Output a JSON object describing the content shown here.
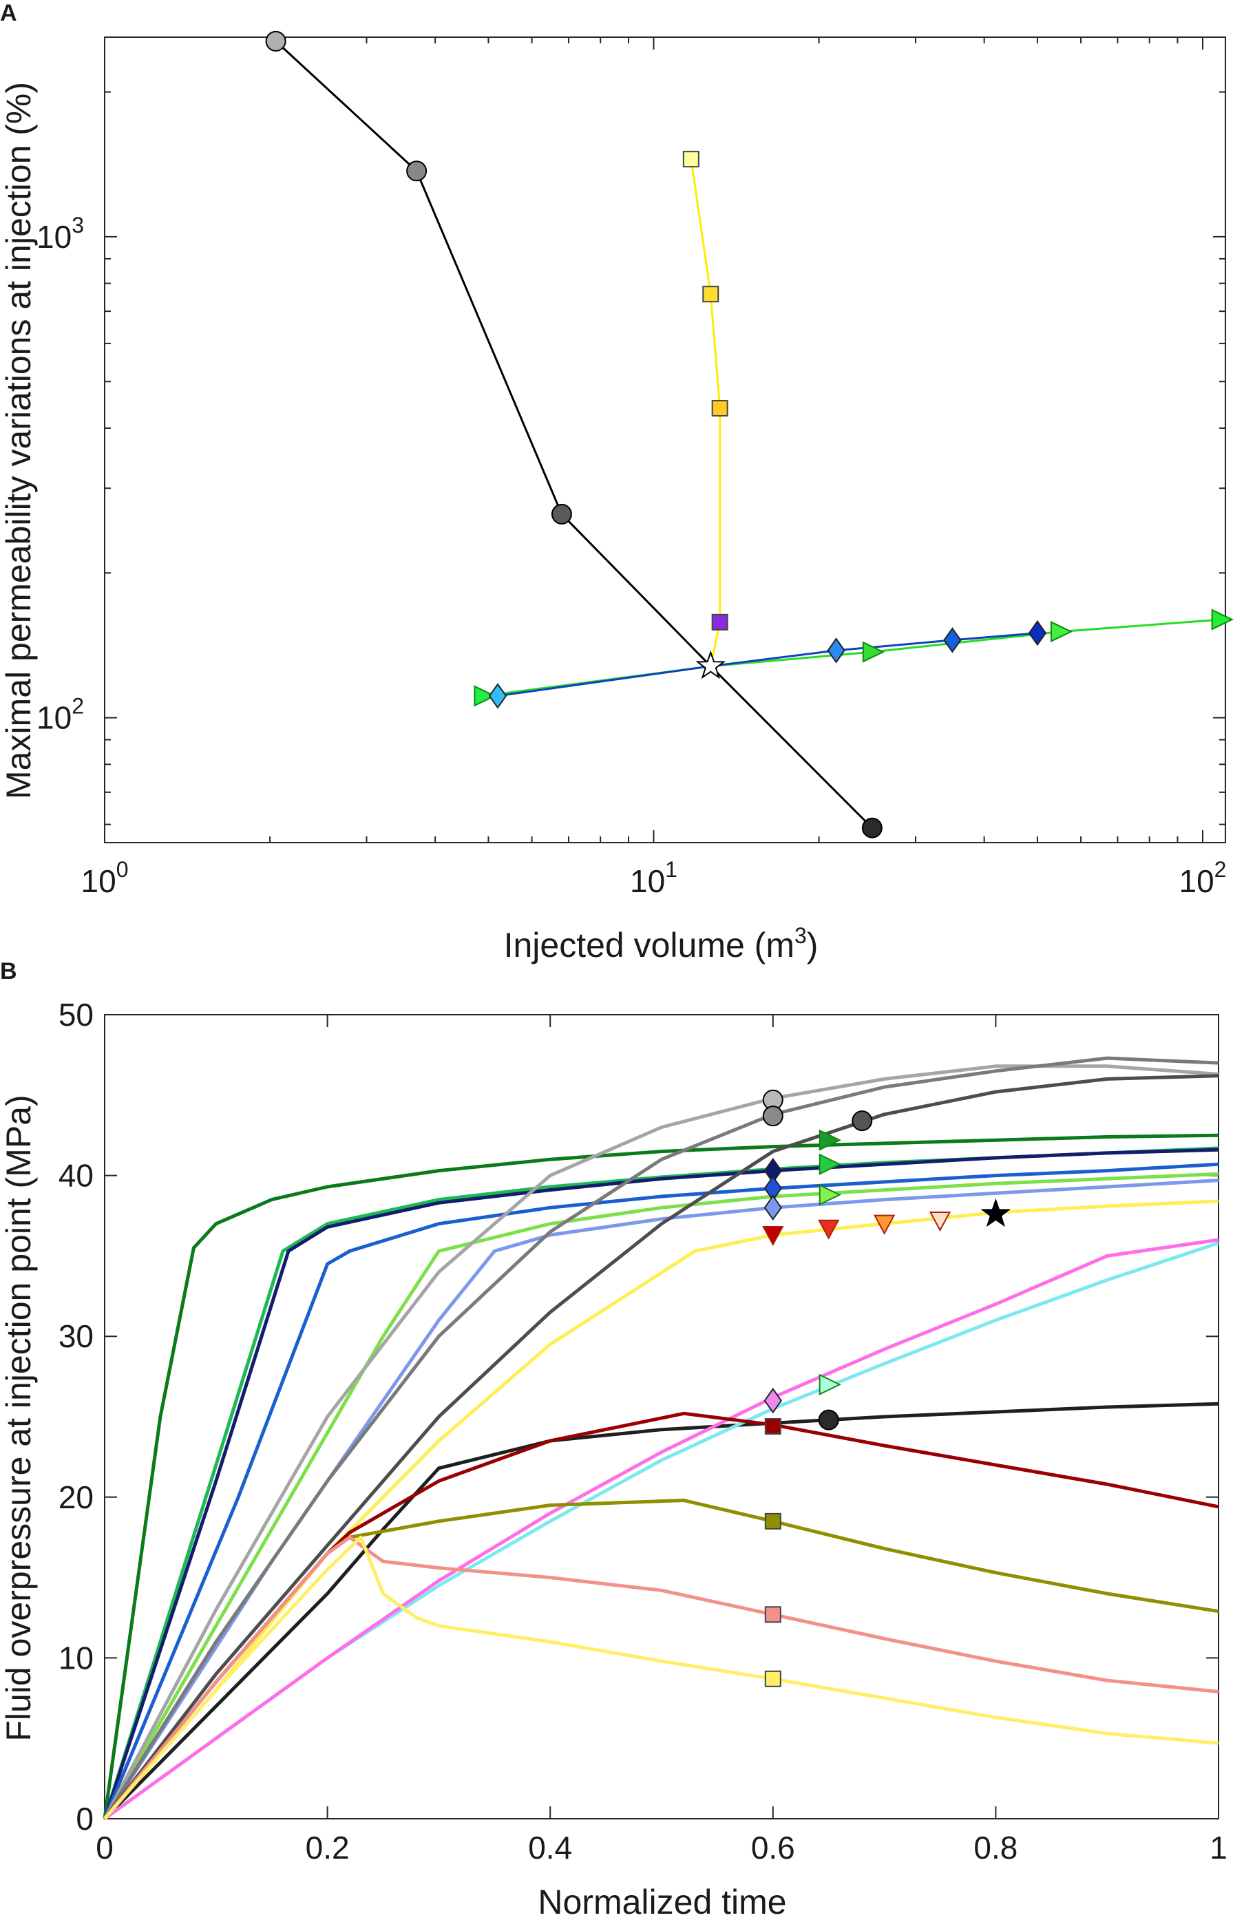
{
  "chart_data": [
    {
      "panel_label": "A",
      "type": "line",
      "xscale": "log",
      "yscale": "log",
      "xlabel": "Injected volume (m",
      "xlabel_sup": "3",
      "xlabel_end": ")",
      "ylabel": "Maximal permeability variations at injection (%)",
      "xlim": [
        1,
        110
      ],
      "ylim": [
        55,
        2600
      ],
      "xticks": [
        {
          "value": 1,
          "base": "10",
          "exp": "0"
        },
        {
          "value": 10,
          "base": "10",
          "exp": "1"
        },
        {
          "value": 100,
          "base": "10",
          "exp": "2"
        }
      ],
      "yticks": [
        {
          "value": 100,
          "base": "10",
          "exp": "2"
        },
        {
          "value": 1000,
          "base": "10",
          "exp": "3"
        }
      ],
      "series": [
        {
          "name": "black-circles",
          "color": "#000000",
          "x": [
            2.05,
            3.7,
            6.8,
            12.7,
            25.0
          ],
          "y": [
            2550,
            1370,
            265,
            128,
            59
          ],
          "markers": [
            {
              "x": 2.05,
              "y": 2550,
              "shape": "circle",
              "fill": "#b0b0b0"
            },
            {
              "x": 3.7,
              "y": 1370,
              "shape": "circle",
              "fill": "#888888"
            },
            {
              "x": 6.8,
              "y": 265,
              "shape": "circle",
              "fill": "#5a5a5a"
            },
            {
              "x": 25.0,
              "y": 59,
              "shape": "circle",
              "fill": "#2a2a2a"
            }
          ]
        },
        {
          "name": "yellow-squares",
          "color": "#ffee00",
          "x": [
            11.7,
            12.7,
            13.2,
            13.2,
            12.7
          ],
          "y": [
            1450,
            760,
            440,
            158,
            128
          ],
          "markers": [
            {
              "x": 11.7,
              "y": 1450,
              "shape": "square",
              "fill": "#ffff99"
            },
            {
              "x": 12.7,
              "y": 760,
              "shape": "square",
              "fill": "#ffdd33"
            },
            {
              "x": 13.2,
              "y": 440,
              "shape": "square",
              "fill": "#ffcc22"
            },
            {
              "x": 13.2,
              "y": 158,
              "shape": "square",
              "fill": "#8a2be2"
            }
          ]
        },
        {
          "name": "green-triangles",
          "color": "#22dd22",
          "x": [
            4.9,
            12.7,
            25.0,
            55.0,
            108.0
          ],
          "y": [
            111,
            128,
            137,
            151,
            160
          ],
          "markers": [
            {
              "x": 4.9,
              "y": 111,
              "shape": "tri-right",
              "fill": "#22ee44"
            },
            {
              "x": 25.0,
              "y": 137,
              "shape": "tri-right",
              "fill": "#33dd33"
            },
            {
              "x": 55.0,
              "y": 151,
              "shape": "tri-right",
              "fill": "#44ee44"
            },
            {
              "x": 108.0,
              "y": 160,
              "shape": "tri-right",
              "fill": "#22ee33"
            }
          ]
        },
        {
          "name": "blue-diamonds",
          "color": "#1040c0",
          "x": [
            5.2,
            12.7,
            21.5,
            35.0,
            50.0
          ],
          "y": [
            111,
            128,
            138,
            145,
            150
          ],
          "markers": [
            {
              "x": 5.2,
              "y": 111,
              "shape": "diamond",
              "fill": "#33bbff"
            },
            {
              "x": 21.5,
              "y": 138,
              "shape": "diamond",
              "fill": "#2a8af0"
            },
            {
              "x": 35.0,
              "y": 145,
              "shape": "diamond",
              "fill": "#1560e0"
            },
            {
              "x": 50.0,
              "y": 150,
              "shape": "diamond",
              "fill": "#0a2ec0"
            }
          ]
        }
      ],
      "reference_point": {
        "x": 12.7,
        "y": 128,
        "shape": "star",
        "fill": "#ffffff",
        "stroke": "#000000"
      }
    },
    {
      "panel_label": "B",
      "type": "line",
      "xscale": "linear",
      "yscale": "linear",
      "xlabel": "Normalized time",
      "ylabel": "Fluid overpressure at injection point (MPa)",
      "xlim": [
        0,
        1
      ],
      "ylim": [
        0,
        50
      ],
      "xticks": [
        0,
        0.2,
        0.4,
        0.6,
        0.8,
        1
      ],
      "xtick_labels": [
        "0",
        "0.2",
        "0.4",
        "0.6",
        "0.8",
        "1"
      ],
      "yticks": [
        0,
        10,
        20,
        30,
        40,
        50
      ],
      "ytick_labels": [
        "0",
        "10",
        "20",
        "30",
        "40",
        "50"
      ],
      "series": [
        {
          "name": "dark-green",
          "color": "#0a7a1a",
          "x": [
            0,
            0.05,
            0.08,
            0.1,
            0.15,
            0.2,
            0.3,
            0.4,
            0.5,
            0.6,
            0.7,
            0.8,
            0.9,
            1.0
          ],
          "y": [
            0,
            25,
            35.5,
            37,
            38.5,
            39.3,
            40.3,
            41,
            41.5,
            41.8,
            42,
            42.2,
            42.4,
            42.5
          ],
          "markers": [
            {
              "x": 0.65,
              "y": 42.2,
              "shape": "tri-right",
              "fill": "#1a9a2a"
            }
          ]
        },
        {
          "name": "medium-green",
          "color": "#1db954",
          "x": [
            0,
            0.1,
            0.16,
            0.2,
            0.3,
            0.4,
            0.5,
            0.6,
            0.7,
            0.8,
            0.9,
            1.0
          ],
          "y": [
            0,
            22,
            35.3,
            37,
            38.5,
            39.3,
            39.9,
            40.4,
            40.8,
            41.1,
            41.4,
            41.7
          ],
          "markers": [
            {
              "x": 0.65,
              "y": 40.7,
              "shape": "tri-right",
              "fill": "#22cc44"
            }
          ]
        },
        {
          "name": "navy",
          "color": "#141c6e",
          "x": [
            0,
            0.1,
            0.165,
            0.2,
            0.3,
            0.4,
            0.5,
            0.6,
            0.7,
            0.8,
            0.9,
            1.0
          ],
          "y": [
            0,
            21,
            35.3,
            36.8,
            38.3,
            39.1,
            39.8,
            40.3,
            40.7,
            41.1,
            41.4,
            41.6
          ],
          "markers": [
            {
              "x": 0.6,
              "y": 40.3,
              "shape": "diamond",
              "fill": "#101a70"
            }
          ]
        },
        {
          "name": "blue",
          "color": "#1a5fd0",
          "x": [
            0,
            0.12,
            0.2,
            0.22,
            0.3,
            0.4,
            0.5,
            0.6,
            0.7,
            0.8,
            0.9,
            1.0
          ],
          "y": [
            0,
            20,
            34.5,
            35.3,
            37,
            38,
            38.7,
            39.2,
            39.6,
            40,
            40.3,
            40.7
          ],
          "markers": [
            {
              "x": 0.6,
              "y": 39.2,
              "shape": "diamond",
              "fill": "#1f50d8"
            }
          ]
        },
        {
          "name": "light-green",
          "color": "#7be04a",
          "x": [
            0,
            0.15,
            0.25,
            0.3,
            0.4,
            0.5,
            0.6,
            0.7,
            0.8,
            0.9,
            1.0
          ],
          "y": [
            0,
            18,
            30,
            35.3,
            37,
            38,
            38.7,
            39.1,
            39.5,
            39.8,
            40.1
          ],
          "markers": [
            {
              "x": 0.65,
              "y": 38.8,
              "shape": "tri-right",
              "fill": "#88ee55"
            }
          ]
        },
        {
          "name": "light-blue",
          "color": "#7c98ea",
          "x": [
            0,
            0.15,
            0.3,
            0.35,
            0.4,
            0.5,
            0.6,
            0.7,
            0.8,
            0.9,
            1.0
          ],
          "y": [
            0,
            16,
            31,
            35.3,
            36.3,
            37.3,
            38,
            38.5,
            38.9,
            39.3,
            39.7
          ],
          "markers": [
            {
              "x": 0.6,
              "y": 38,
              "shape": "diamond",
              "fill": "#7c98ea"
            }
          ]
        },
        {
          "name": "light-gray",
          "color": "#a5a5a5",
          "x": [
            0,
            0.1,
            0.2,
            0.3,
            0.4,
            0.5,
            0.6,
            0.7,
            0.8,
            0.9,
            1.0
          ],
          "y": [
            0,
            13,
            25,
            34,
            40,
            43,
            44.8,
            46,
            46.8,
            46.8,
            46.3
          ],
          "markers": [
            {
              "x": 0.6,
              "y": 44.7,
              "shape": "circle",
              "fill": "#b8b8b8"
            }
          ]
        },
        {
          "name": "mid-gray",
          "color": "#7a7a7a",
          "x": [
            0,
            0.1,
            0.2,
            0.3,
            0.4,
            0.5,
            0.6,
            0.7,
            0.8,
            0.9,
            1.0
          ],
          "y": [
            0,
            11,
            21,
            30,
            36.5,
            41,
            43.8,
            45.5,
            46.5,
            47.3,
            47
          ],
          "markers": [
            {
              "x": 0.6,
              "y": 43.7,
              "shape": "circle",
              "fill": "#8a8a8a"
            }
          ]
        },
        {
          "name": "dark-gray",
          "color": "#4d4d4d",
          "x": [
            0,
            0.1,
            0.2,
            0.3,
            0.4,
            0.5,
            0.6,
            0.7,
            0.8,
            0.9,
            1.0
          ],
          "y": [
            0,
            9,
            17,
            25,
            31.5,
            37,
            41.5,
            43.8,
            45.2,
            46,
            46.2
          ],
          "markers": [
            {
              "x": 0.68,
              "y": 43.4,
              "shape": "circle",
              "fill": "#555555"
            }
          ]
        },
        {
          "name": "yellow-upper",
          "color": "#ffee55",
          "x": [
            0,
            0.1,
            0.2,
            0.3,
            0.4,
            0.53,
            0.6,
            0.7,
            0.8,
            0.9,
            1.0
          ],
          "y": [
            0,
            8,
            16.5,
            23.5,
            29.5,
            35.3,
            36.3,
            37,
            37.7,
            38.1,
            38.4
          ],
          "markers": [
            {
              "x": 0.6,
              "y": 36.3,
              "shape": "tri-down",
              "fill": "#c00000"
            },
            {
              "x": 0.65,
              "y": 36.7,
              "shape": "tri-down",
              "fill": "#e83020"
            },
            {
              "x": 0.7,
              "y": 37,
              "shape": "tri-down",
              "fill": "#ff9933"
            },
            {
              "x": 0.75,
              "y": 37.2,
              "shape": "tri-down",
              "fill": "#ffe0c8"
            },
            {
              "x": 0.8,
              "y": 37.6,
              "shape": "star",
              "fill": "#000000"
            }
          ]
        },
        {
          "name": "black",
          "color": "#1f1f1f",
          "x": [
            0,
            0.1,
            0.2,
            0.25,
            0.3,
            0.4,
            0.5,
            0.6,
            0.7,
            0.8,
            0.9,
            1.0
          ],
          "y": [
            0,
            7,
            14,
            18,
            21.8,
            23.5,
            24.2,
            24.6,
            25,
            25.3,
            25.6,
            25.8
          ],
          "markers": [
            {
              "x": 0.65,
              "y": 24.8,
              "shape": "circle",
              "fill": "#2a2a2a"
            }
          ]
        },
        {
          "name": "cyan",
          "color": "#7ee8f0",
          "x": [
            0,
            0.1,
            0.2,
            0.3,
            0.4,
            0.5,
            0.6,
            0.7,
            0.8,
            0.9,
            1.0
          ],
          "y": [
            0,
            5,
            10,
            14.5,
            18.5,
            22.3,
            25.5,
            28.3,
            31,
            33.5,
            35.8
          ],
          "markers": [
            {
              "x": 0.65,
              "y": 27,
              "shape": "tri-right",
              "fill": "#aaffdd"
            }
          ]
        },
        {
          "name": "magenta",
          "color": "#ff6ee8",
          "x": [
            0,
            0.1,
            0.2,
            0.3,
            0.4,
            0.5,
            0.6,
            0.7,
            0.8,
            0.9,
            1.0
          ],
          "y": [
            0,
            5,
            10,
            14.8,
            19,
            22.8,
            26.2,
            29.2,
            32,
            35,
            36
          ],
          "markers": [
            {
              "x": 0.6,
              "y": 26,
              "shape": "diamond",
              "fill": "#ee88ee"
            }
          ]
        },
        {
          "name": "dark-red",
          "color": "#990000",
          "x": [
            0,
            0.1,
            0.2,
            0.22,
            0.3,
            0.4,
            0.52,
            0.6,
            0.7,
            0.8,
            0.9,
            1.0
          ],
          "y": [
            0,
            8.5,
            16.5,
            17.8,
            21,
            23.5,
            25.2,
            24.5,
            23.2,
            22,
            20.8,
            19.4
          ],
          "markers": [
            {
              "x": 0.6,
              "y": 24.4,
              "shape": "square",
              "fill": "#990000"
            }
          ]
        },
        {
          "name": "olive",
          "color": "#8f8f00",
          "x": [
            0,
            0.1,
            0.2,
            0.22,
            0.3,
            0.4,
            0.52,
            0.6,
            0.7,
            0.8,
            0.9,
            1.0
          ],
          "y": [
            0,
            8.5,
            16.5,
            17.5,
            18.5,
            19.5,
            19.8,
            18.5,
            16.8,
            15.3,
            14,
            12.9
          ],
          "markers": [
            {
              "x": 0.6,
              "y": 18.5,
              "shape": "square",
              "fill": "#8f8f00"
            }
          ]
        },
        {
          "name": "salmon",
          "color": "#f4908a",
          "x": [
            0,
            0.1,
            0.2,
            0.22,
            0.25,
            0.3,
            0.4,
            0.5,
            0.6,
            0.7,
            0.8,
            0.9,
            1.0
          ],
          "y": [
            0,
            8.5,
            16.5,
            17.5,
            16,
            15.6,
            15,
            14.2,
            12.7,
            11.2,
            9.8,
            8.6,
            7.9
          ],
          "markers": [
            {
              "x": 0.6,
              "y": 12.7,
              "shape": "square",
              "fill": "#f4908a"
            }
          ]
        },
        {
          "name": "pale-yellow",
          "color": "#ffee66",
          "x": [
            0,
            0.1,
            0.2,
            0.23,
            0.25,
            0.28,
            0.3,
            0.4,
            0.5,
            0.6,
            0.7,
            0.8,
            0.9,
            1.0
          ],
          "y": [
            0,
            8,
            15.5,
            17.5,
            14,
            12.5,
            12,
            11,
            9.8,
            8.7,
            7.5,
            6.3,
            5.3,
            4.7
          ],
          "markers": [
            {
              "x": 0.6,
              "y": 8.7,
              "shape": "square",
              "fill": "#ffee66"
            }
          ]
        }
      ]
    }
  ]
}
